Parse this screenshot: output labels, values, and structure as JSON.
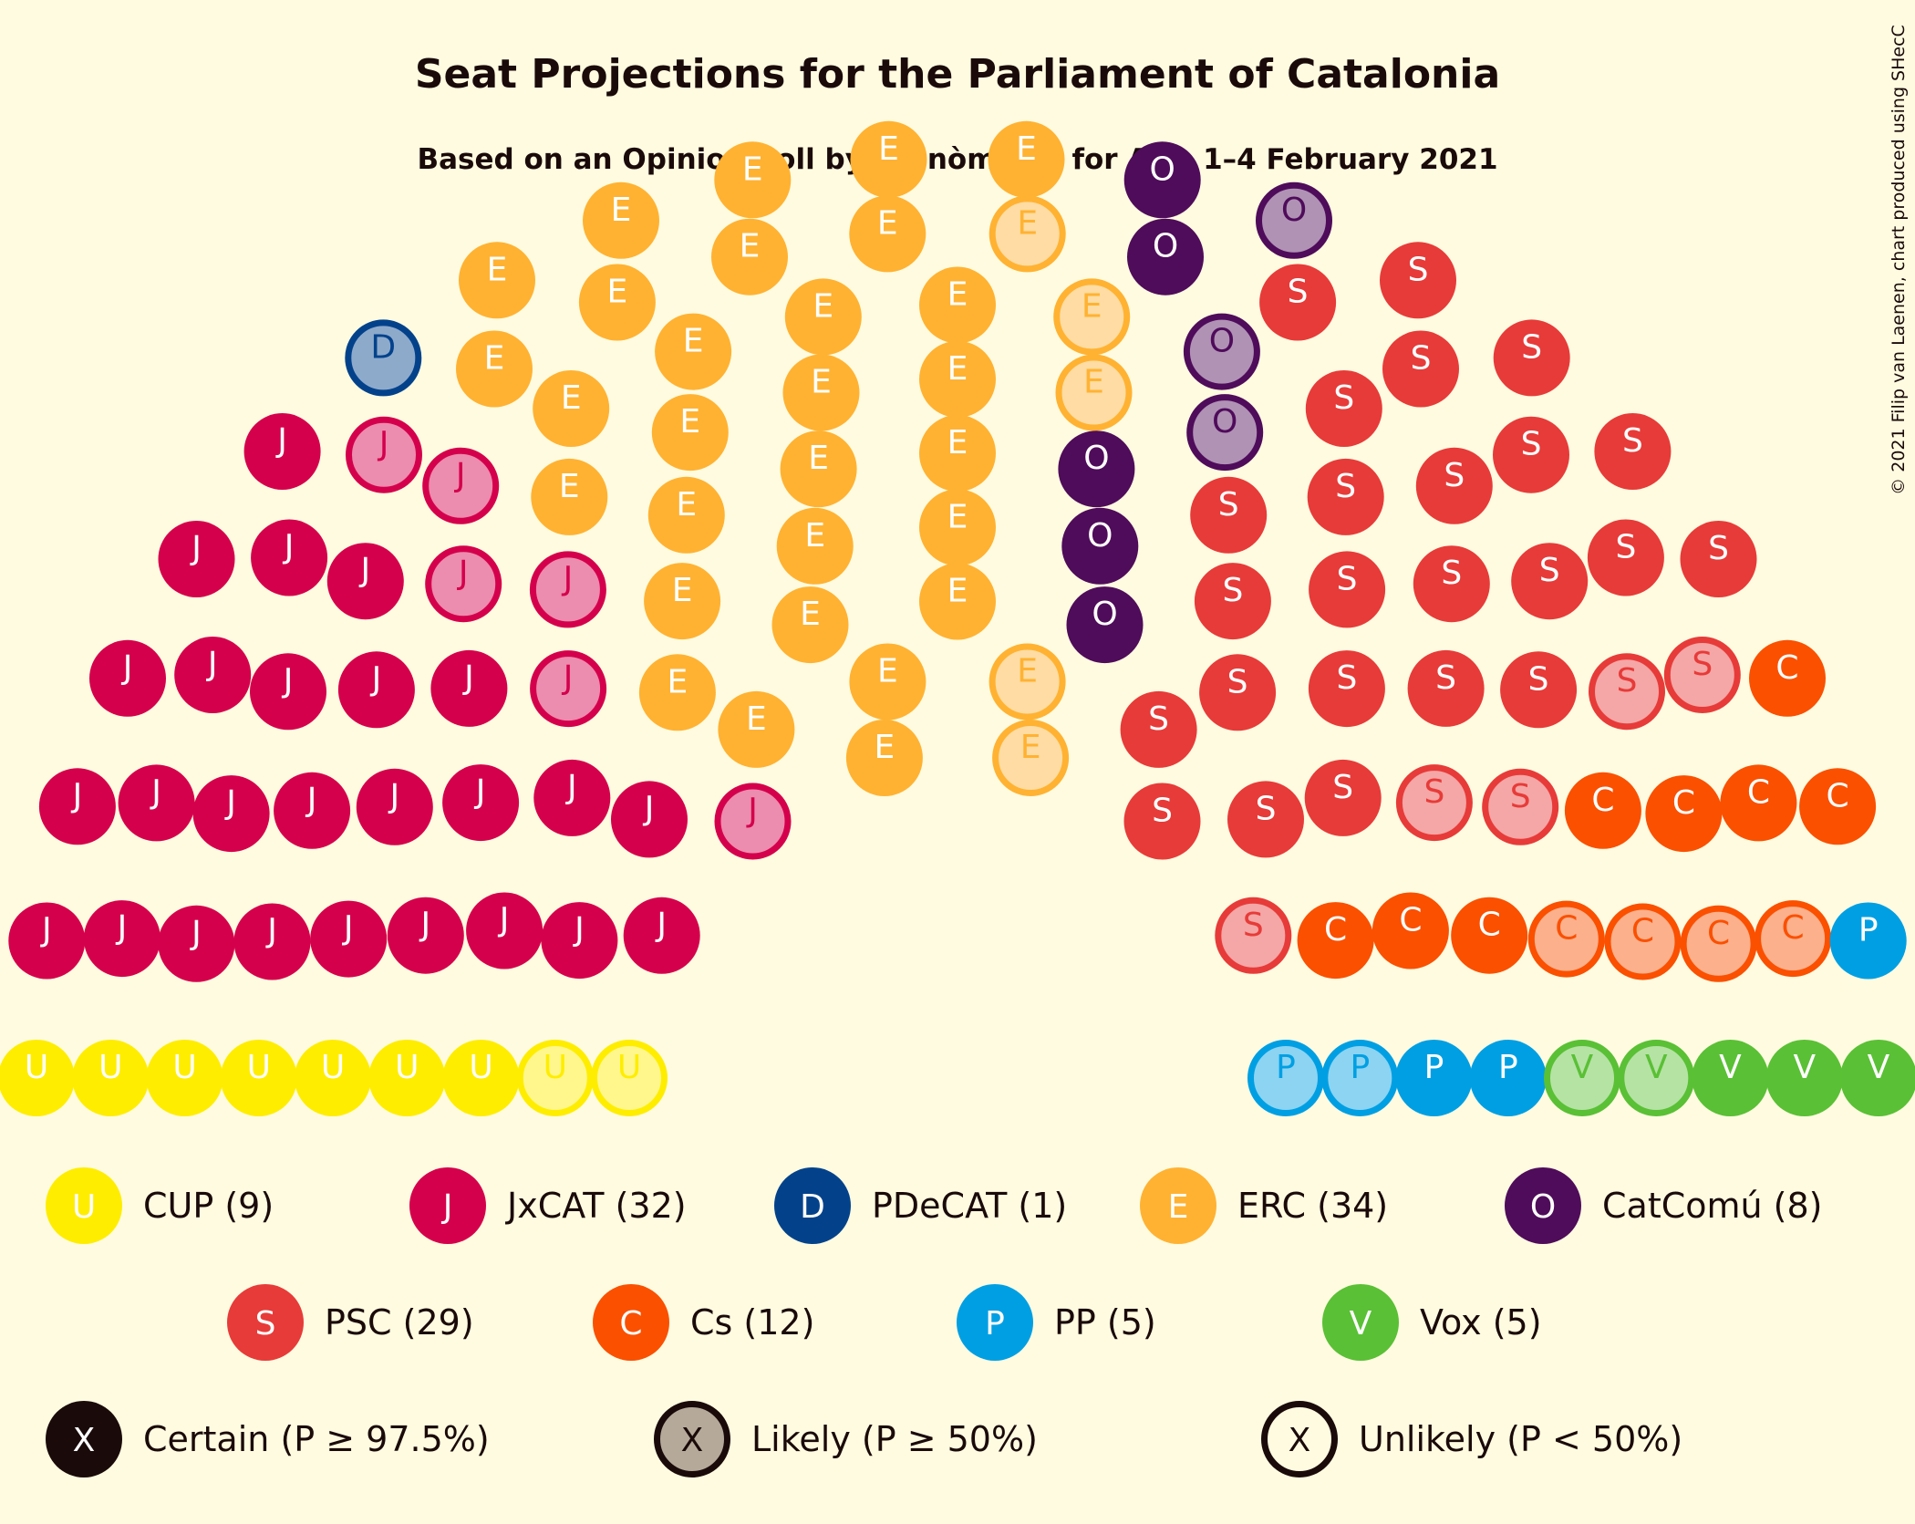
{
  "chart_data": {
    "type": "parliament",
    "title": "Seat Projections for the Parliament of Catalonia",
    "subtitle": "Based on an Opinion Poll by Opinòmetre for Ara, 1–4 February 2021",
    "copyright": "© 2021 Filip van Laenen, chart produced using SHecC",
    "total_seats": 135,
    "parties": [
      {
        "letter": "U",
        "name": "CUP",
        "seats": 9,
        "likely": 2,
        "color": "#FFED00",
        "text_color": "#FFFFFF",
        "legend": "CUP (9)"
      },
      {
        "letter": "J",
        "name": "JxCAT",
        "seats": 32,
        "likely": 6,
        "color": "#D4004C",
        "text_color": "#FFFFFF",
        "legend": "JxCAT (32)"
      },
      {
        "letter": "D",
        "name": "PDeCAT",
        "seats": 1,
        "likely": 1,
        "color": "#03428B",
        "text_color": "#FFFFFF",
        "legend": "PDeCAT (1)"
      },
      {
        "letter": "E",
        "name": "ERC",
        "seats": 34,
        "likely": 5,
        "color": "#FFB232",
        "text_color": "#FFFFFF",
        "legend": "ERC (34)"
      },
      {
        "letter": "O",
        "name": "CatComú",
        "seats": 8,
        "likely": 3,
        "color": "#4F0C5A",
        "text_color": "#FFFFFF",
        "legend": "CatComú (8)"
      },
      {
        "letter": "S",
        "name": "PSC",
        "seats": 29,
        "likely": 5,
        "color": "#E73B39",
        "text_color": "#FFFFFF",
        "legend": "PSC (29)"
      },
      {
        "letter": "C",
        "name": "Cs",
        "seats": 12,
        "likely": 4,
        "color": "#FA5000",
        "text_color": "#FFFFFF",
        "legend": "Cs (12)"
      },
      {
        "letter": "P",
        "name": "PP",
        "seats": 5,
        "likely": 2,
        "color": "#009FE3",
        "text_color": "#FFFFFF",
        "legend": "PP (5)"
      },
      {
        "letter": "V",
        "name": "Vox",
        "seats": 5,
        "likely": 2,
        "color": "#5AC035",
        "text_color": "#FFFFFF",
        "legend": "Vox (5)"
      }
    ],
    "certainty_legend": [
      {
        "letter": "X",
        "label": "Certain (P ≥ 97.5%)",
        "style": "certain"
      },
      {
        "letter": "X",
        "label": "Likely (P ≥ 50%)",
        "style": "likely"
      },
      {
        "letter": "X",
        "label": "Unlikely (P < 50%)",
        "style": "unlikely"
      }
    ],
    "background": "#FFFBE0",
    "text_color": "#1a0a0a"
  }
}
